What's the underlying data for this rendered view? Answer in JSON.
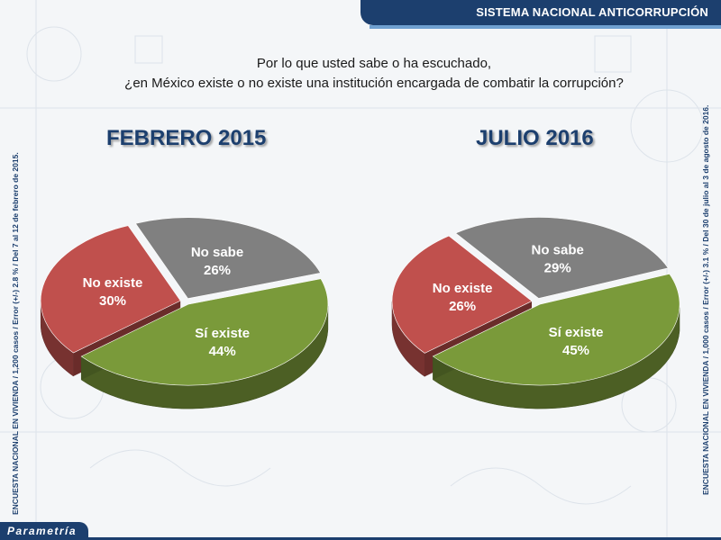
{
  "header": {
    "title": "SISTEMA NACIONAL ANTICORRUPCIÓN"
  },
  "question": {
    "line1": "Por lo que usted sabe o ha escuchado,",
    "line2": "¿en México existe o no existe una institución encargada de combatir la corrupción?"
  },
  "side_notes": {
    "left": "ENCUESTA NACIONAL EN VIVIENDA / 1,200 casos / Error (+/-) 2.8 % / Del 7 al 12 de febrero de 2015.",
    "right": "ENCUESTA NACIONAL EN VIVIENDA / 1,000 casos / Error (+/-) 3.1 % / Del 30 de julio al 3 de agosto de 2016."
  },
  "footer": {
    "logo": "Parametría"
  },
  "colors": {
    "si_existe": "#7a9a3a",
    "no_existe": "#c0504d",
    "no_sabe": "#808080",
    "brand": "#1c3f6e"
  },
  "chart_data": [
    {
      "type": "pie",
      "title": "FEBRERO  2015",
      "slices": [
        {
          "label": "Sí existe",
          "value": 44,
          "display": "44%"
        },
        {
          "label": "No existe",
          "value": 30,
          "display": "30%"
        },
        {
          "label": "No sabe",
          "value": 26,
          "display": "26%"
        }
      ]
    },
    {
      "type": "pie",
      "title": "JULIO 2016",
      "slices": [
        {
          "label": "Sí existe",
          "value": 45,
          "display": "45%"
        },
        {
          "label": "No existe",
          "value": 26,
          "display": "26%"
        },
        {
          "label": "No sabe",
          "value": 29,
          "display": "29%"
        }
      ]
    }
  ]
}
